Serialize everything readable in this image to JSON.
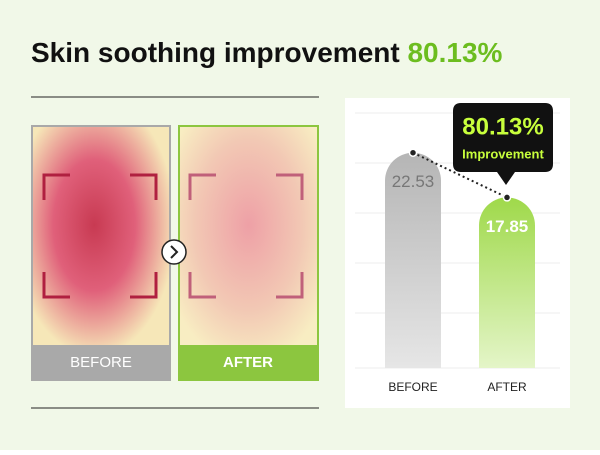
{
  "title": "Skin soothing improvement",
  "title_highlight": "80.13%",
  "photos": {
    "before_label": "BEFORE",
    "after_label": "AFTER"
  },
  "chart_data": {
    "type": "bar",
    "categories": [
      "BEFORE",
      "AFTER"
    ],
    "values": [
      22.53,
      17.85
    ],
    "colors": [
      "#b9b9b9",
      "#a5dc4a"
    ],
    "ylim": [
      0,
      27
    ],
    "callout": {
      "value": "80.13%",
      "label": "Improvement"
    }
  }
}
